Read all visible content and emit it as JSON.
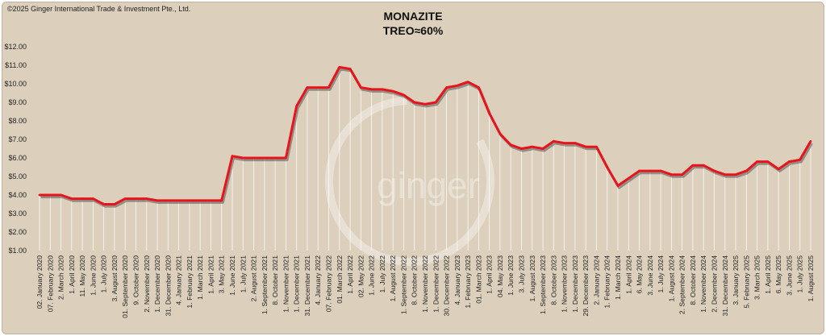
{
  "copyright": "©2025 Ginger International Trade & Investment Pte., Ltd.",
  "watermark_text": "ginger",
  "colors": {
    "background": "#dcd0bd",
    "line": "#e8141c",
    "shadow": "#555555",
    "droplines": "#ffffff"
  },
  "chart_data": {
    "type": "line",
    "title": "MONAZITE",
    "subtitle": "TREO≈60%",
    "xlabel": "",
    "ylabel": "",
    "ylim": [
      1,
      12
    ],
    "yticks": [
      "$12.00",
      "$11.00",
      "$10.00",
      "$9.00",
      "$8.00",
      "$7.00",
      "$6.00",
      "$5.00",
      "$4.00",
      "$3.00",
      "$2.00",
      "$1.00"
    ],
    "ytick_values": [
      12,
      11,
      10,
      9,
      8,
      7,
      6,
      5,
      4,
      3,
      2,
      1
    ],
    "grid": false,
    "legend": "none",
    "categories": [
      "02. January 2020",
      "07. February 2020",
      "2. March 2020",
      "1. April 2020",
      "11. May 2020",
      "1. June 2020",
      "1. July 2020",
      "3. August 2020",
      "01. September 2020",
      "9. October 2020",
      "2. November 2020",
      "1. December 2020",
      "31. December 2020",
      "4. January 2021",
      "1. February 2021",
      "1. March 2021",
      "1. April 2021",
      "3. May 2021",
      "1. June 2021",
      "1. July 2021",
      "2. August 2021",
      "1. September 2021",
      "8. October 2021",
      "1. November 2021",
      "1. December 2021",
      "31. December 2021",
      "4. January 2022",
      "07. February 2022",
      "01. March 2022",
      "1. April 2022",
      "02. May 2022",
      "1. June 2022",
      "1. July 2022",
      "1. August 2022",
      "1. September 2022",
      "8. October 2022",
      "1. November 2022",
      "1. December 2022",
      "30. December 2022",
      "4. January 2023",
      "1. February 2023",
      "01. March 2023",
      "1. April 2023",
      "04. May 2023",
      "1. June 2023",
      "3. July 2023",
      "1. August 2023",
      "1. September 2023",
      "8. October 2023",
      "1. November 2023",
      "1. December 2023",
      "29. December 2023",
      "2. January 2024",
      "1. February 2024",
      "1. March 2024",
      "1. April 2024",
      "6. May 2024",
      "3. June 2024",
      "1. July 2024",
      "1. August 2024",
      "2. September 2024",
      "8. October 2024",
      "1. November 2024",
      "2. December 2024",
      "31. December 2024",
      "3. January 2025",
      "5. February 2025",
      "3. March 2025",
      "1. April 2025",
      "6. May 2025",
      "3. June 2025",
      "1. July 2025",
      "1. August 2025"
    ],
    "series": [
      {
        "values": [
          4.0,
          4.0,
          4.0,
          3.8,
          3.8,
          3.8,
          3.5,
          3.5,
          3.8,
          3.8,
          3.8,
          3.7,
          3.7,
          3.7,
          3.7,
          3.7,
          3.7,
          3.7,
          6.1,
          6.0,
          6.0,
          6.0,
          6.0,
          6.0,
          8.8,
          9.8,
          9.8,
          9.8,
          10.9,
          10.8,
          9.8,
          9.7,
          9.7,
          9.6,
          9.4,
          9.0,
          8.9,
          9.0,
          9.8,
          9.9,
          10.1,
          9.8,
          8.4,
          7.3,
          6.7,
          6.5,
          6.6,
          6.5,
          6.9,
          6.8,
          6.8,
          6.6,
          6.6,
          5.5,
          4.5,
          4.9,
          5.3,
          5.3,
          5.3,
          5.1,
          5.1,
          5.6,
          5.6,
          5.3,
          5.1,
          5.1,
          5.3,
          5.8,
          5.8,
          5.4,
          5.8,
          5.9,
          6.9
        ]
      }
    ]
  }
}
